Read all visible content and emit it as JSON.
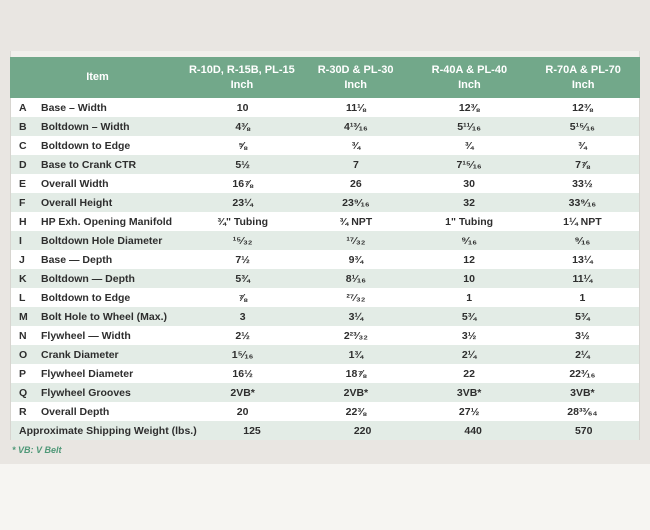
{
  "colors": {
    "page_background": "#e9e6e2",
    "header_green": "#72a88a",
    "stripe_green": "#e3ece6",
    "row_white": "#ffffff",
    "text": "#2e2e2e",
    "footnote_green": "#4f9878"
  },
  "header": {
    "item_label": "Item",
    "product_columns": [
      {
        "name": "R-10D, R-15B, PL-15",
        "unit": "Inch"
      },
      {
        "name": "R-30D & PL-30",
        "unit": "Inch"
      },
      {
        "name": "R-40A & PL-40",
        "unit": "Inch"
      },
      {
        "name": "R-70A & PL-70",
        "unit": "Inch"
      }
    ]
  },
  "chart_data": {
    "type": "table",
    "title": "",
    "columns": [
      "",
      "Item",
      "R-10D, R-15B, PL-15 (Inch)",
      "R-30D & PL-30 (Inch)",
      "R-40A & PL-40 (Inch)",
      "R-70A & PL-70 (Inch)"
    ],
    "rows": [
      [
        "A",
        "Base – Width",
        "10",
        "11⅛",
        "12⅜",
        "12⅜"
      ],
      [
        "B",
        "Boltdown – Width",
        "4⅜",
        "4¹³⁄₁₆",
        "5¹¹⁄₁₆",
        "5¹⁵⁄₁₆"
      ],
      [
        "C",
        "Boltdown to Edge",
        "⅝",
        "¾",
        "¾",
        "¾"
      ],
      [
        "D",
        "Base to Crank CTR",
        "5½",
        "7",
        "7¹⁵⁄₁₆",
        "7⅞"
      ],
      [
        "E",
        "Overall Width",
        "16⅞",
        "26",
        "30",
        "33½"
      ],
      [
        "F",
        "Overall Height",
        "23¼",
        "23⁹⁄₁₆",
        "32",
        "33⁹⁄₁₆"
      ],
      [
        "H",
        "HP Exh. Opening Manifold",
        "¾\" Tubing",
        "¾ NPT",
        "1\" Tubing",
        "1¼ NPT"
      ],
      [
        "I",
        "Boltdown Hole Diameter",
        "¹⁵⁄₃₂",
        "¹⁷⁄₃₂",
        "⁹⁄₁₆",
        "⁹⁄₁₆"
      ],
      [
        "J",
        "Base — Depth",
        "7½",
        "9¾",
        "12",
        "13¼"
      ],
      [
        "K",
        "Boltdown — Depth",
        "5¾",
        "8¹⁄₁₆",
        "10",
        "11¼"
      ],
      [
        "L",
        "Boltdown to Edge",
        "⅞",
        "²⁷⁄₃₂",
        "1",
        "1"
      ],
      [
        "M",
        "Bolt Hole to Wheel (Max.)",
        "3",
        "3¼",
        "5¾",
        "5¾"
      ],
      [
        "N",
        "Flywheel — Width",
        "2½",
        "2²³⁄₃₂",
        "3½",
        "3½"
      ],
      [
        "O",
        "Crank Diameter",
        "1⁵⁄₁₆",
        "1¾",
        "2¼",
        "2¼"
      ],
      [
        "P",
        "Flywheel Diameter",
        "16½",
        "18⅞",
        "22",
        "22³⁄₁₆"
      ],
      [
        "Q",
        "Flywheel Grooves",
        "2VB*",
        "2VB*",
        "3VB*",
        "3VB*"
      ],
      [
        "R",
        "Overall Depth",
        "20",
        "22⅜",
        "27½",
        "28³³⁄₆₄"
      ]
    ],
    "summary_row": {
      "label": "Approximate Shipping Weight (lbs.)",
      "values": [
        "125",
        "220",
        "440",
        "570"
      ]
    },
    "footnote": "* VB: V Belt"
  }
}
